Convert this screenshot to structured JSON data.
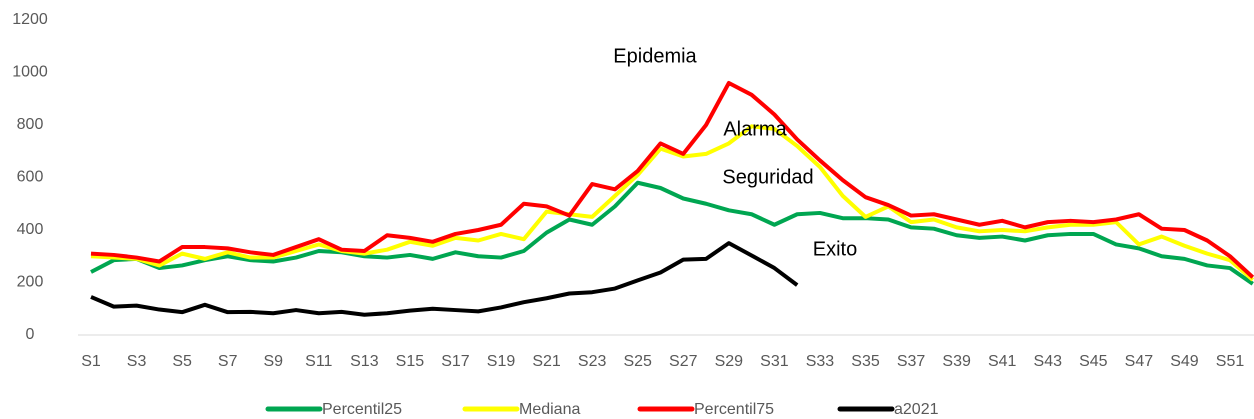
{
  "chart_data": {
    "type": "line",
    "categories": [
      "S1",
      null,
      "S3",
      null,
      "S5",
      null,
      "S7",
      null,
      "S9",
      null,
      "S11",
      null,
      "S13",
      null,
      "S15",
      null,
      "S17",
      null,
      "S19",
      null,
      "S21",
      null,
      "S23",
      null,
      "S25",
      null,
      "S27",
      null,
      "S29",
      null,
      "S31",
      null,
      "S33",
      null,
      "S35",
      null,
      "S37",
      null,
      "S39",
      null,
      "S41",
      null,
      "S43",
      null,
      "S45",
      null,
      "S47",
      null,
      "S49",
      null,
      "S51",
      null
    ],
    "series": [
      {
        "name": "Percentil25",
        "color": "#00a651",
        "values": [
          240,
          285,
          290,
          255,
          265,
          285,
          300,
          285,
          280,
          295,
          320,
          315,
          300,
          295,
          305,
          290,
          315,
          300,
          295,
          320,
          390,
          440,
          420,
          490,
          580,
          560,
          520,
          500,
          475,
          460,
          420,
          460,
          465,
          445,
          445,
          440,
          410,
          405,
          380,
          370,
          375,
          360,
          380,
          385,
          385,
          345,
          330,
          300,
          290,
          265,
          255,
          195
        ]
      },
      {
        "name": "Mediana",
        "color": "#ffff00",
        "values": [
          300,
          295,
          290,
          265,
          310,
          290,
          315,
          295,
          295,
          320,
          345,
          320,
          310,
          325,
          355,
          340,
          370,
          360,
          385,
          365,
          470,
          460,
          450,
          530,
          610,
          710,
          680,
          690,
          730,
          795,
          785,
          720,
          640,
          530,
          450,
          490,
          430,
          440,
          410,
          395,
          400,
          395,
          410,
          420,
          420,
          430,
          345,
          375,
          340,
          310,
          285,
          210
        ]
      },
      {
        "name": "Percentil75",
        "color": "#ff0000",
        "values": [
          310,
          305,
          295,
          280,
          335,
          335,
          330,
          315,
          305,
          335,
          365,
          325,
          320,
          380,
          370,
          355,
          385,
          400,
          420,
          500,
          490,
          455,
          575,
          555,
          625,
          730,
          690,
          800,
          960,
          915,
          840,
          745,
          665,
          590,
          525,
          495,
          455,
          460,
          440,
          420,
          435,
          410,
          430,
          435,
          430,
          440,
          460,
          405,
          400,
          360,
          300,
          220
        ]
      },
      {
        "name": "a2021",
        "color": "#000000",
        "values": [
          145,
          108,
          112,
          97,
          87,
          115,
          87,
          88,
          83,
          95,
          83,
          88,
          77,
          83,
          93,
          100,
          95,
          90,
          105,
          125,
          140,
          158,
          163,
          177,
          208,
          238,
          287,
          290,
          350,
          303,
          255,
          190,
          null,
          null,
          null,
          null,
          null,
          null,
          null,
          null,
          null,
          null,
          null,
          null,
          null,
          null,
          null,
          null,
          null,
          null,
          null,
          null
        ]
      }
    ],
    "annotations": [
      "Epidemia",
      "Alarma",
      "Seguridad",
      "Exito"
    ],
    "ylim": [
      0,
      1200
    ],
    "yticks": [
      0,
      200,
      400,
      600,
      800,
      1000,
      1200
    ],
    "legend": "bottom"
  }
}
